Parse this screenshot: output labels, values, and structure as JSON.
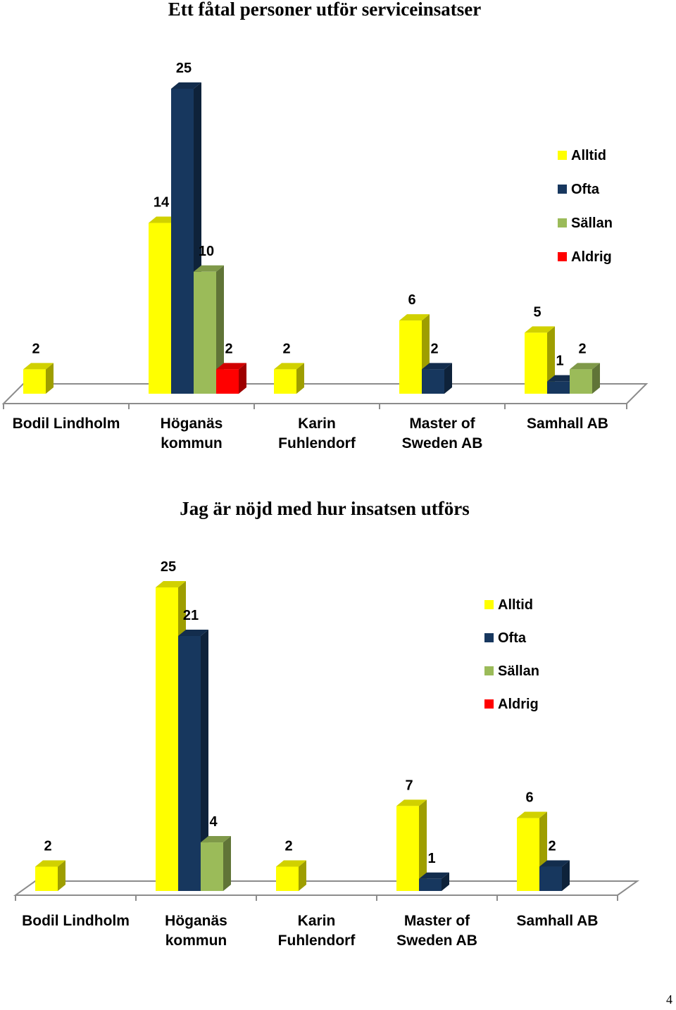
{
  "page_number": "4",
  "colors": {
    "Alltid": "#ffff00",
    "Ofta": "#17375e",
    "Sällan": "#9bbb59",
    "Aldrig": "#ff0000"
  },
  "chart_data": [
    {
      "type": "bar",
      "title": "Ett fåtal personer utför serviceinsatser",
      "categories": [
        "Bodil Lindholm",
        "Höganäs kommun",
        "Karin Fuhlendorf",
        "Master of Sweden AB",
        "Samhall AB"
      ],
      "category_lines": [
        [
          "Bodil Lindholm"
        ],
        [
          "Höganäs",
          "kommun"
        ],
        [
          "Karin",
          "Fuhlendorf"
        ],
        [
          "Master of",
          "Sweden AB"
        ],
        [
          "Samhall AB"
        ]
      ],
      "series": [
        {
          "name": "Alltid",
          "values": [
            2,
            14,
            2,
            6,
            5
          ]
        },
        {
          "name": "Ofta",
          "values": [
            null,
            25,
            null,
            2,
            1
          ]
        },
        {
          "name": "Sällan",
          "values": [
            null,
            10,
            null,
            null,
            2
          ]
        },
        {
          "name": "Aldrig",
          "values": [
            null,
            2,
            null,
            null,
            null
          ]
        }
      ],
      "ylim": [
        0,
        25
      ],
      "legend": "right",
      "style": "3d-columns"
    },
    {
      "type": "bar",
      "title": "Jag är nöjd med hur insatsen utförs",
      "categories": [
        "Bodil Lindholm",
        "Höganäs kommun",
        "Karin Fuhlendorf",
        "Master of Sweden AB",
        "Samhall AB"
      ],
      "category_lines": [
        [
          "Bodil Lindholm"
        ],
        [
          "Höganäs",
          "kommun"
        ],
        [
          "Karin",
          "Fuhlendorf"
        ],
        [
          "Master of",
          "Sweden AB"
        ],
        [
          "Samhall AB"
        ]
      ],
      "series": [
        {
          "name": "Alltid",
          "values": [
            2,
            25,
            2,
            7,
            6
          ]
        },
        {
          "name": "Ofta",
          "values": [
            null,
            21,
            null,
            1,
            2
          ]
        },
        {
          "name": "Sällan",
          "values": [
            null,
            4,
            null,
            null,
            null
          ]
        },
        {
          "name": "Aldrig",
          "values": [
            null,
            null,
            null,
            null,
            null
          ]
        }
      ],
      "ylim": [
        0,
        25
      ],
      "legend": "right",
      "style": "3d-columns"
    }
  ]
}
